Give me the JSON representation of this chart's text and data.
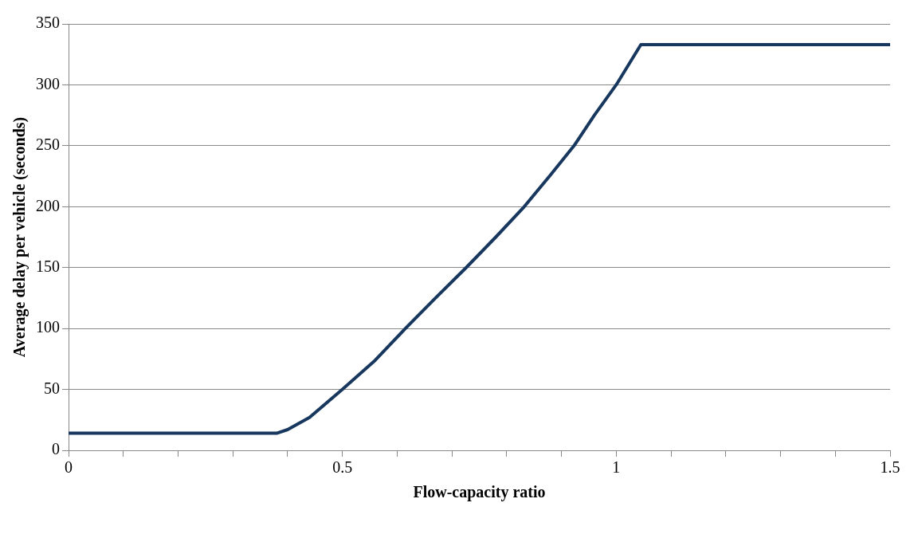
{
  "chart_data": {
    "type": "line",
    "xlabel": "Flow-capacity ratio",
    "ylabel": "Average delay per vehicle (seconds)",
    "series": [
      {
        "color": "#17375e",
        "x": [
          0,
          0.38,
          0.4,
          0.44,
          0.5,
          0.56,
          0.615,
          0.67,
          0.726,
          0.78,
          0.832,
          0.88,
          0.923,
          0.96,
          1.0,
          1.045,
          1.5
        ],
        "values": [
          14,
          14,
          17,
          27,
          50,
          74,
          100,
          125,
          150,
          175,
          200,
          226,
          250,
          275,
          300,
          333,
          333
        ]
      }
    ],
    "xlim": [
      0,
      1.5
    ],
    "xticks": [
      0,
      {
        "value": 0.1,
        "label": null
      },
      {
        "value": 0.2,
        "label": null
      },
      {
        "value": 0.3,
        "label": null
      },
      {
        "value": 0.4,
        "label": null
      },
      0.5,
      {
        "value": 0.6,
        "label": null
      },
      {
        "value": 0.7,
        "label": null
      },
      {
        "value": 0.8,
        "label": null
      },
      {
        "value": 0.9,
        "label": null
      },
      1,
      {
        "value": 1.1,
        "label": null
      },
      {
        "value": 1.2,
        "label": null
      },
      {
        "value": 1.3,
        "label": null
      },
      {
        "value": 1.4,
        "label": null
      },
      1.5
    ],
    "ylim": [
      0,
      350
    ],
    "yticks": [
      0,
      50,
      100,
      150,
      200,
      250,
      300,
      350
    ],
    "grid": "y",
    "legend": false,
    "marker": "none",
    "line_style": "solid"
  }
}
